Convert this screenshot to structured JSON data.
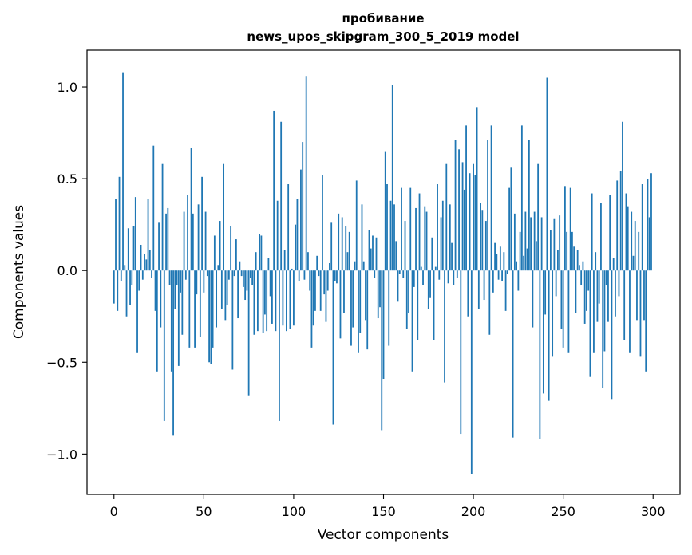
{
  "chart_data": {
    "type": "bar",
    "title_lines": [
      "пробивание",
      "news_upos_skipgram_300_5_2019 model"
    ],
    "xlabel": "Vector components",
    "ylabel": "Components values",
    "xlim": [
      -15,
      315
    ],
    "ylim": [
      -1.22,
      1.2
    ],
    "xticks": [
      0,
      50,
      100,
      150,
      200,
      250,
      300
    ],
    "yticks": [
      -1.0,
      -0.5,
      0.0,
      0.5,
      1.0
    ],
    "ytick_labels": [
      "−1.0",
      "−0.5",
      "0.0",
      "0.5",
      "1.0"
    ],
    "grid": false,
    "colors": {
      "bar": "#1f77b4"
    },
    "values": [
      -0.18,
      0.39,
      -0.22,
      0.51,
      -0.06,
      1.08,
      0.03,
      -0.25,
      0.23,
      -0.19,
      -0.08,
      0.24,
      0.4,
      -0.45,
      -0.11,
      0.14,
      -0.05,
      0.09,
      0.06,
      0.39,
      0.11,
      -0.04,
      0.68,
      -0.22,
      -0.55,
      0.26,
      -0.31,
      0.58,
      -0.82,
      0.31,
      0.34,
      -0.08,
      -0.55,
      -0.9,
      -0.21,
      -0.08,
      -0.52,
      -0.12,
      -0.35,
      0.32,
      -0.05,
      0.41,
      -0.42,
      0.67,
      0.31,
      -0.42,
      -0.13,
      0.36,
      -0.36,
      0.51,
      -0.12,
      0.32,
      -0.03,
      -0.5,
      -0.51,
      -0.42,
      0.19,
      -0.31,
      0.03,
      0.27,
      -0.21,
      0.58,
      -0.27,
      -0.19,
      -0.05,
      0.24,
      -0.54,
      -0.03,
      0.17,
      -0.26,
      0.05,
      -0.03,
      -0.09,
      -0.16,
      -0.11,
      -0.68,
      -0.04,
      -0.08,
      -0.35,
      0.1,
      -0.33,
      0.2,
      0.19,
      -0.34,
      -0.24,
      -0.33,
      0.07,
      -0.14,
      -0.29,
      0.87,
      -0.33,
      0.38,
      -0.82,
      0.81,
      -0.3,
      0.11,
      -0.33,
      0.47,
      -0.32,
      0.01,
      -0.3,
      0.25,
      0.39,
      -0.06,
      0.55,
      0.7,
      -0.05,
      1.06,
      0.1,
      -0.11,
      -0.42,
      -0.3,
      -0.22,
      0.08,
      -0.03,
      -0.22,
      0.52,
      -0.13,
      -0.28,
      -0.11,
      0.04,
      0.26,
      -0.84,
      -0.06,
      -0.07,
      0.31,
      -0.37,
      0.29,
      -0.23,
      0.24,
      0.1,
      0.21,
      -0.41,
      -0.31,
      0.05,
      0.49,
      -0.45,
      -0.34,
      0.36,
      0.05,
      -0.27,
      -0.43,
      0.22,
      0.12,
      0.19,
      -0.04,
      0.18,
      -0.26,
      -0.2,
      -0.87,
      -0.59,
      0.65,
      0.47,
      -0.41,
      0.38,
      1.01,
      0.36,
      0.16,
      -0.17,
      -0.02,
      0.45,
      -0.04,
      0.27,
      -0.32,
      -0.23,
      0.45,
      -0.55,
      -0.09,
      0.34,
      -0.38,
      0.42,
      0.02,
      -0.08,
      0.35,
      0.32,
      -0.21,
      -0.15,
      0.18,
      -0.38,
      0.02,
      0.47,
      -0.05,
      0.29,
      0.38,
      -0.61,
      0.58,
      -0.07,
      0.36,
      0.15,
      -0.08,
      0.71,
      -0.04,
      0.66,
      -0.89,
      0.59,
      0.44,
      0.79,
      -0.25,
      0.53,
      -1.11,
      0.58,
      0.52,
      0.89,
      -0.21,
      0.37,
      0.33,
      -0.16,
      0.27,
      0.71,
      -0.35,
      0.79,
      -0.12,
      0.15,
      0.09,
      -0.05,
      0.13,
      -0.06,
      0.1,
      -0.22,
      -0.02,
      0.45,
      0.56,
      -0.91,
      0.31,
      0.05,
      -0.11,
      0.21,
      0.79,
      0.08,
      0.32,
      0.12,
      0.71,
      0.29,
      -0.31,
      0.32,
      0.16,
      0.58,
      -0.92,
      0.29,
      -0.67,
      -0.24,
      1.05,
      -0.71,
      0.22,
      -0.47,
      0.28,
      -0.14,
      0.11,
      0.3,
      -0.32,
      -0.42,
      0.46,
      0.21,
      -0.45,
      0.45,
      0.21,
      0.13,
      -0.23,
      0.11,
      0.03,
      -0.08,
      0.05,
      -0.29,
      -0.22,
      -0.11,
      -0.58,
      0.42,
      -0.45,
      0.1,
      -0.28,
      -0.18,
      0.37,
      -0.64,
      -0.44,
      -0.08,
      -0.28,
      0.41,
      -0.7,
      0.07,
      -0.25,
      0.49,
      -0.14,
      0.54,
      0.81,
      -0.38,
      0.42,
      0.35,
      -0.45,
      0.32,
      0.08,
      0.27,
      -0.27,
      0.21,
      -0.47,
      0.47,
      -0.27,
      -0.55,
      0.5,
      0.29,
      0.53
    ]
  }
}
